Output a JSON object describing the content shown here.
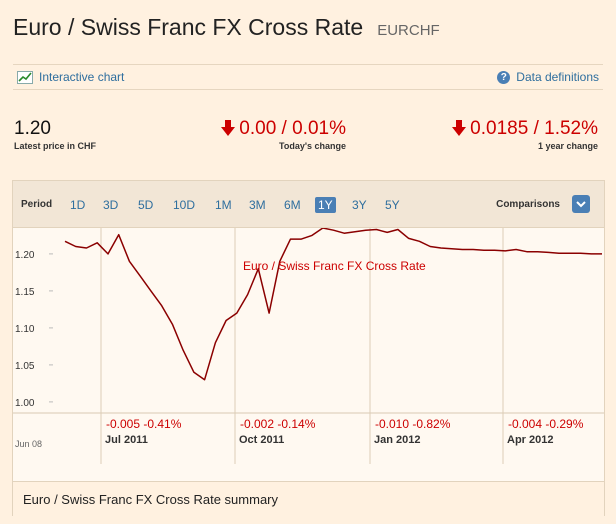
{
  "header": {
    "title": "Euro / Swiss Franc FX Cross Rate",
    "ticker": "EURCHF"
  },
  "links": {
    "interactive_chart": "Interactive chart",
    "data_definitions": "Data definitions"
  },
  "stats": {
    "latest_price": "1.20",
    "latest_price_label": "Latest price in CHF",
    "todays_change": "0.00 / 0.01%",
    "todays_change_label": "Today's change",
    "year_change": "0.0185 / 1.52%",
    "year_change_label": "1 year change"
  },
  "periods": {
    "label": "Period",
    "options": [
      "1D",
      "3D",
      "5D",
      "10D",
      "1M",
      "3M",
      "6M",
      "1Y",
      "3Y",
      "5Y"
    ],
    "active": "1Y",
    "comparisons_label": "Comparisons"
  },
  "colors": {
    "line": "#8b0000",
    "negative": "#cc0000",
    "link": "#2e6e9e",
    "accent": "#4a7fb5"
  },
  "chart_data": {
    "type": "line",
    "series_label": "Euro / Swiss Franc FX Cross Rate",
    "y_ticks": [
      "1.20",
      "1.15",
      "1.10",
      "1.05",
      "1.00"
    ],
    "ylim": [
      0.985,
      1.235
    ],
    "x_start_label": "Jun 08",
    "x_ticks": [
      "Jul 2011",
      "Oct 2011",
      "Jan 2012",
      "Apr 2012"
    ],
    "period_changes": [
      "-0.005 -0.41%",
      "-0.002 -0.14%",
      "-0.010 -0.82%",
      "-0.004 -0.29%"
    ],
    "x": [
      0,
      1,
      2,
      3,
      4,
      5,
      6,
      7,
      8,
      9,
      10,
      11,
      12,
      13,
      14,
      15,
      16,
      17,
      18,
      19,
      20,
      21,
      22,
      23,
      24,
      25,
      26,
      27,
      28,
      29,
      30,
      31,
      32,
      33,
      34,
      35,
      36,
      37,
      38,
      39,
      40,
      41,
      42,
      43,
      44,
      45,
      46,
      47,
      48,
      49,
      50
    ],
    "values": [
      1.217,
      1.21,
      1.208,
      1.215,
      1.2,
      1.226,
      1.19,
      1.17,
      1.15,
      1.13,
      1.105,
      1.07,
      1.04,
      1.03,
      1.08,
      1.11,
      1.12,
      1.145,
      1.18,
      1.12,
      1.19,
      1.22,
      1.22,
      1.225,
      1.235,
      1.232,
      1.228,
      1.23,
      1.232,
      1.233,
      1.229,
      1.233,
      1.221,
      1.217,
      1.21,
      1.208,
      1.207,
      1.206,
      1.206,
      1.205,
      1.205,
      1.204,
      1.206,
      1.203,
      1.203,
      1.202,
      1.201,
      1.201,
      1.201,
      1.2,
      1.2
    ]
  },
  "summary": {
    "title": "Euro / Swiss Franc FX Cross Rate summary"
  }
}
